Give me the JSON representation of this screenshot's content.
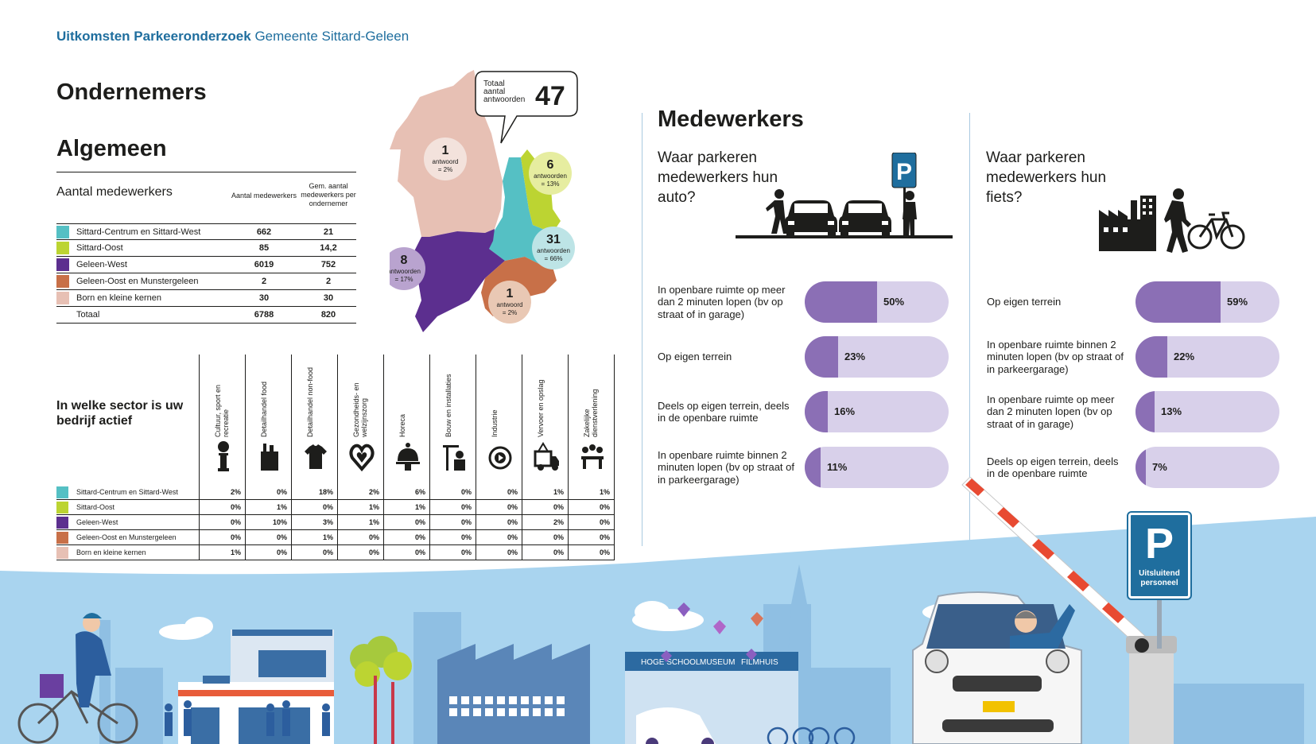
{
  "header": {
    "bold": "Uitkomsten Parkeeronderzoek",
    "rest": "Gemeente Sittard-Geleen"
  },
  "titles": {
    "ondernemers": "Ondernemers",
    "algemeen": "Algemeen",
    "medewerkers": "Medewerkers"
  },
  "colors": {
    "teal": "#55c0c4",
    "lime": "#bcd432",
    "purple": "#5c2f8f",
    "brown": "#c87048",
    "pink": "#e7c0b4",
    "bar_fill": "#8b6fb5",
    "bar_bg": "#d8d0ea",
    "sky": "#a9d4ef",
    "accent_blue": "#1f6e9e"
  },
  "employees": {
    "title": "Aantal medewerkers",
    "col1": "Aantal medewerkers",
    "col2": "Gem. aantal medewerkers per ondernemer",
    "rows": [
      {
        "name": "Sittard-Centrum en Sittard-West",
        "count": "662",
        "avg": "21"
      },
      {
        "name": "Sittard-Oost",
        "count": "85",
        "avg": "14,2"
      },
      {
        "name": "Geleen-West",
        "count": "6019",
        "avg": "752"
      },
      {
        "name": "Geleen-Oost en Munstergeleen",
        "count": "2",
        "avg": "2"
      },
      {
        "name": "Born en kleine kernen",
        "count": "30",
        "avg": "30"
      },
      {
        "name": "Totaal",
        "count": "6788",
        "avg": "820"
      }
    ]
  },
  "map": {
    "total_label": "Totaal aantal antwoorden",
    "total_value": "47",
    "bubbles": [
      {
        "num": "1",
        "unit": "antwoord",
        "pct": "= 2%"
      },
      {
        "num": "6",
        "unit": "antwoorden",
        "pct": "= 13%"
      },
      {
        "num": "31",
        "unit": "antwoorden",
        "pct": "= 66%"
      },
      {
        "num": "8",
        "unit": "antwoorden",
        "pct": "= 17%"
      },
      {
        "num": "1",
        "unit": "antwoord",
        "pct": "= 2%"
      }
    ]
  },
  "sector": {
    "question": "In welke sector is uw bedrijf actief",
    "columns": [
      {
        "label": "Cultuur, sport en recreatie",
        "icon": "column-icon"
      },
      {
        "label": "Detailhandel food",
        "icon": "grocery-bag-icon"
      },
      {
        "label": "Detailhandel non-food",
        "icon": "shirt-icon"
      },
      {
        "label": "Gezondheids- en welzijnszorg",
        "icon": "heart-hands-icon"
      },
      {
        "label": "Horeca",
        "icon": "cloche-icon"
      },
      {
        "label": "Bouw en installaties",
        "icon": "crane-worker-icon"
      },
      {
        "label": "Industrie",
        "icon": "gear-cycle-icon"
      },
      {
        "label": "Vervoer en opslag",
        "icon": "truck-icon"
      },
      {
        "label": "Zakelijke dienstverlening",
        "icon": "meeting-icon"
      }
    ],
    "rows": [
      {
        "name": "Sittard-Centrum en Sittard-West",
        "values": [
          "2%",
          "0%",
          "18%",
          "2%",
          "6%",
          "0%",
          "0%",
          "1%",
          "1%"
        ]
      },
      {
        "name": "Sittard-Oost",
        "values": [
          "0%",
          "1%",
          "0%",
          "1%",
          "1%",
          "0%",
          "0%",
          "0%",
          "0%"
        ]
      },
      {
        "name": "Geleen-West",
        "values": [
          "0%",
          "10%",
          "3%",
          "1%",
          "0%",
          "0%",
          "0%",
          "2%",
          "0%"
        ]
      },
      {
        "name": "Geleen-Oost en Munstergeleen",
        "values": [
          "0%",
          "0%",
          "1%",
          "0%",
          "0%",
          "0%",
          "0%",
          "0%",
          "0%"
        ]
      },
      {
        "name": "Born en kleine kernen",
        "values": [
          "1%",
          "0%",
          "0%",
          "0%",
          "0%",
          "0%",
          "0%",
          "0%",
          "0%"
        ]
      }
    ]
  },
  "car": {
    "question": "Waar parkeren medewerkers hun auto?",
    "items": [
      {
        "label": "In openbare ruimte op meer dan 2 minuten lopen (bv op straat of in garage)",
        "value": 50,
        "pct": "50%"
      },
      {
        "label": "Op eigen terrein",
        "value": 23,
        "pct": "23%"
      },
      {
        "label": "Deels op eigen terrein, deels in de openbare ruimte",
        "value": 16,
        "pct": "16%"
      },
      {
        "label": "In openbare ruimte binnen 2 minuten lopen (bv op straat of in parkeergarage)",
        "value": 11,
        "pct": "11%"
      }
    ]
  },
  "bike": {
    "question": "Waar parkeren medewerkers hun fiets?",
    "items": [
      {
        "label": "Op eigen terrein",
        "value": 59,
        "pct": "59%"
      },
      {
        "label": "In openbare ruimte binnen 2 minuten lopen (bv op straat of in parkeergarage)",
        "value": 22,
        "pct": "22%"
      },
      {
        "label": "In openbare ruimte op meer dan 2 minuten lopen (bv op straat of in garage)",
        "value": 13,
        "pct": "13%"
      },
      {
        "label": "Deels op eigen terrein, deels in de openbare ruimte",
        "value": 7,
        "pct": "7%"
      }
    ]
  },
  "parking_sign": {
    "letter": "P",
    "text": "Uitsluitend personeel"
  },
  "scene_signs": {
    "school": "HOGE SCHOOL",
    "museum": "MUSEUM",
    "filmhuis": "FILMHUIS"
  }
}
